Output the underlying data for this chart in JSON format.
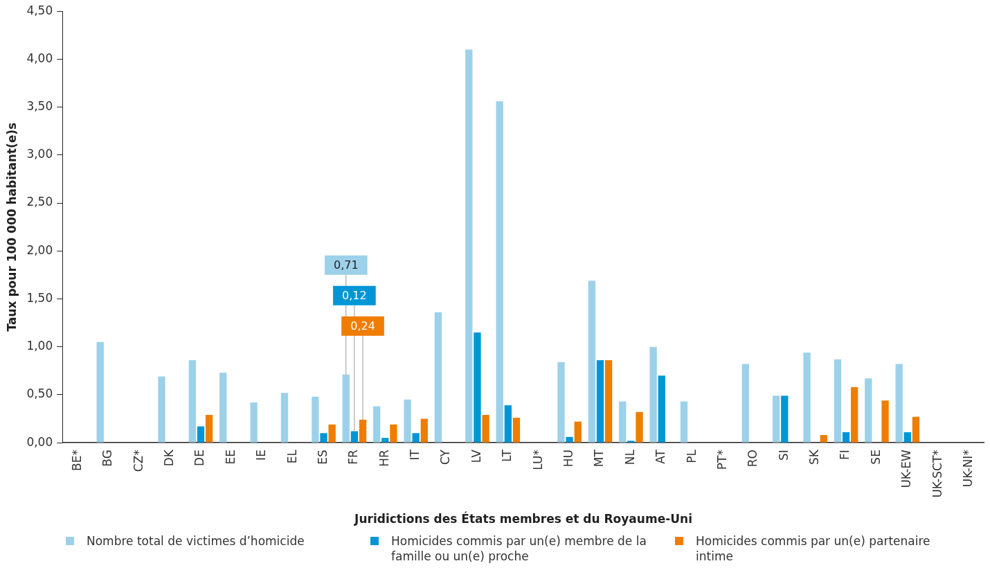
{
  "chart_data": {
    "type": "bar",
    "xlabel": "Juridictions des États membres et du Royaume-Uni",
    "ylabel": "Taux pour 100 000 habitant(e)s",
    "categories": [
      "BE*",
      "BG",
      "CZ*",
      "DK",
      "DE",
      "EE",
      "IE",
      "EL",
      "ES",
      "FR",
      "HR",
      "IT",
      "CY",
      "LV",
      "LT",
      "LU*",
      "HU",
      "MT",
      "NL",
      "AT",
      "PL",
      "PT*",
      "RO",
      "SI",
      "SK",
      "FI",
      "SE",
      "UK-EW",
      "UK-SCT*",
      "UK-NI*"
    ],
    "series": [
      {
        "name": "Nombre total de victimes d’homicide",
        "color": "#9dd1ea",
        "values": [
          null,
          1.05,
          null,
          0.69,
          0.86,
          0.73,
          0.42,
          0.52,
          0.48,
          0.71,
          0.38,
          0.45,
          1.36,
          4.1,
          3.56,
          null,
          0.84,
          1.69,
          0.43,
          1.0,
          0.43,
          null,
          0.82,
          0.49,
          0.94,
          0.87,
          0.67,
          0.82,
          null,
          null
        ],
        "value_labels": [
          null,
          null,
          null,
          null,
          null,
          null,
          null,
          null,
          null,
          "0,71",
          null,
          null,
          null,
          null,
          null,
          null,
          null,
          null,
          null,
          null,
          null,
          null,
          null,
          null,
          null,
          null,
          null,
          null,
          null,
          null
        ]
      },
      {
        "name": "Homicides commis par un(e) membre de la famille ou un(e) proche",
        "color": "#0096d6",
        "values": [
          null,
          null,
          null,
          null,
          0.17,
          null,
          null,
          null,
          0.1,
          0.12,
          0.05,
          0.1,
          null,
          1.15,
          0.39,
          null,
          0.06,
          0.86,
          0.02,
          0.7,
          null,
          null,
          null,
          0.49,
          null,
          0.11,
          null,
          0.11,
          null,
          null
        ],
        "value_labels": [
          null,
          null,
          null,
          null,
          null,
          null,
          null,
          null,
          null,
          "0,12",
          null,
          null,
          null,
          null,
          null,
          null,
          null,
          null,
          null,
          null,
          null,
          null,
          null,
          null,
          null,
          null,
          null,
          null,
          null,
          null
        ]
      },
      {
        "name": "Homicides commis par un(e) partenaire intime",
        "color": "#ef7d00",
        "values": [
          null,
          null,
          null,
          null,
          0.29,
          null,
          null,
          null,
          0.19,
          0.24,
          0.19,
          0.25,
          null,
          0.29,
          0.26,
          null,
          0.22,
          0.86,
          0.32,
          null,
          null,
          null,
          null,
          null,
          0.08,
          0.58,
          0.44,
          0.27,
          null,
          null
        ],
        "value_labels": [
          null,
          null,
          null,
          null,
          null,
          null,
          null,
          null,
          null,
          "0,24",
          null,
          null,
          null,
          null,
          null,
          null,
          null,
          null,
          null,
          null,
          null,
          null,
          null,
          null,
          null,
          null,
          null,
          null,
          null,
          null
        ]
      }
    ],
    "ylim": [
      0,
      4.5
    ],
    "yticks": [
      {
        "value": 0,
        "label": "0,00"
      },
      {
        "value": 0.5,
        "label": "0,50"
      },
      {
        "value": 1,
        "label": "1,00"
      },
      {
        "value": 1.5,
        "label": "1,50"
      },
      {
        "value": 2,
        "label": "2,00"
      },
      {
        "value": 2.5,
        "label": "2,50"
      },
      {
        "value": 3,
        "label": "3,00"
      },
      {
        "value": 3.5,
        "label": "3,50"
      },
      {
        "value": 4,
        "label": "4,00"
      },
      {
        "value": 4.5,
        "label": "4,50"
      }
    ],
    "grid": false,
    "legend": "bottom"
  }
}
